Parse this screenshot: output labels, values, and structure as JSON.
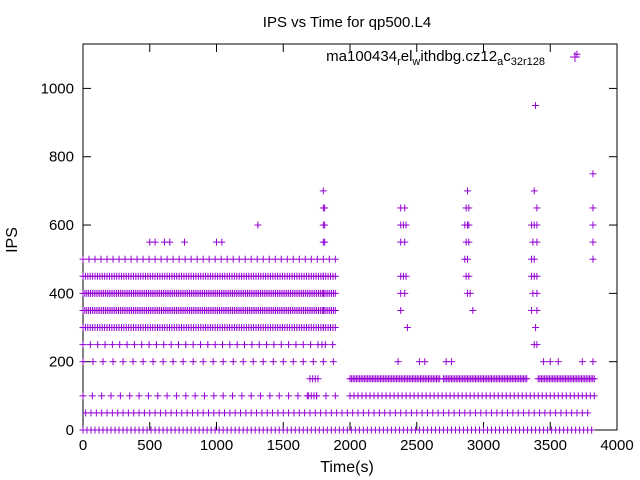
{
  "chart_data": {
    "type": "scatter",
    "title": "IPS vs Time for qp500.L4",
    "xlabel": "Time(s)",
    "ylabel": "IPS",
    "xlim": [
      0,
      4000
    ],
    "ylim": [
      0,
      1130
    ],
    "xticks": [
      0,
      500,
      1000,
      1500,
      2000,
      2500,
      3000,
      3500,
      4000
    ],
    "yticks": [
      0,
      200,
      400,
      600,
      800,
      1000
    ],
    "grid": false,
    "legend_position": "top-right",
    "series": [
      {
        "name_parts": [
          "ma100434",
          "r",
          "el",
          "w",
          "ithdbg.cz12",
          "a",
          "c",
          "32r128"
        ],
        "color": "#9400d3",
        "marker": "plus",
        "bands": [
          {
            "y": 0,
            "x_start": 0,
            "x_end": 3830,
            "step": 30
          },
          {
            "y": 50,
            "x_start": 20,
            "x_end": 3800,
            "step": 40
          },
          {
            "y": 150,
            "x_start": 2000,
            "x_end": 2680,
            "step": 12
          },
          {
            "y": 150,
            "x_start": 2700,
            "x_end": 3330,
            "step": 12
          },
          {
            "y": 150,
            "x_start": 3410,
            "x_end": 3830,
            "step": 12
          },
          {
            "y": 100,
            "x_start": 2000,
            "x_end": 3830,
            "step": 30
          },
          {
            "y": 300,
            "x_start": 0,
            "x_end": 1900,
            "step": 18
          },
          {
            "y": 350,
            "x_start": 0,
            "x_end": 1900,
            "step": 14
          },
          {
            "y": 400,
            "x_start": 0,
            "x_end": 1900,
            "step": 14
          },
          {
            "y": 450,
            "x_start": 0,
            "x_end": 1900,
            "step": 18
          },
          {
            "y": 250,
            "x_start": 0,
            "x_end": 1900,
            "step": 55
          },
          {
            "y": 200,
            "x_start": 0,
            "x_end": 1900,
            "step": 75
          },
          {
            "y": 100,
            "x_start": 0,
            "x_end": 1900,
            "step": 70
          },
          {
            "y": 500,
            "x_start": 0,
            "x_end": 1900,
            "step": 45
          }
        ],
        "points": [
          [
            1700,
            150
          ],
          [
            1720,
            150
          ],
          [
            1740,
            150
          ],
          [
            1760,
            150
          ],
          [
            1690,
            100
          ],
          [
            1710,
            100
          ],
          [
            1730,
            100
          ],
          [
            1750,
            100
          ],
          [
            1800,
            700
          ],
          [
            1800,
            650
          ],
          [
            1810,
            650
          ],
          [
            1800,
            600
          ],
          [
            1810,
            600
          ],
          [
            1800,
            550
          ],
          [
            1810,
            550
          ],
          [
            1800,
            450
          ],
          [
            1800,
            400
          ],
          [
            1800,
            350
          ],
          [
            1800,
            300
          ],
          [
            1790,
            250
          ],
          [
            2380,
            650
          ],
          [
            2410,
            650
          ],
          [
            2380,
            600
          ],
          [
            2400,
            600
          ],
          [
            2420,
            600
          ],
          [
            2380,
            550
          ],
          [
            2410,
            550
          ],
          [
            2380,
            450
          ],
          [
            2400,
            450
          ],
          [
            2420,
            450
          ],
          [
            2380,
            400
          ],
          [
            2410,
            400
          ],
          [
            2380,
            350
          ],
          [
            2430,
            300
          ],
          [
            2880,
            700
          ],
          [
            2870,
            650
          ],
          [
            2890,
            650
          ],
          [
            2860,
            600
          ],
          [
            2880,
            600
          ],
          [
            2890,
            600
          ],
          [
            2870,
            550
          ],
          [
            2890,
            550
          ],
          [
            2860,
            500
          ],
          [
            2880,
            500
          ],
          [
            2870,
            450
          ],
          [
            2890,
            450
          ],
          [
            2880,
            400
          ],
          [
            2900,
            400
          ],
          [
            2920,
            350
          ],
          [
            3380,
            700
          ],
          [
            3400,
            650
          ],
          [
            3360,
            600
          ],
          [
            3380,
            600
          ],
          [
            3400,
            600
          ],
          [
            3370,
            550
          ],
          [
            3400,
            550
          ],
          [
            3360,
            500
          ],
          [
            3380,
            500
          ],
          [
            3360,
            450
          ],
          [
            3380,
            450
          ],
          [
            3400,
            450
          ],
          [
            3370,
            400
          ],
          [
            3400,
            400
          ],
          [
            3360,
            350
          ],
          [
            3400,
            350
          ],
          [
            3390,
            300
          ],
          [
            3380,
            250
          ],
          [
            3400,
            250
          ],
          [
            3820,
            750
          ],
          [
            3820,
            650
          ],
          [
            3820,
            600
          ],
          [
            3820,
            550
          ],
          [
            3820,
            500
          ],
          [
            3390,
            950
          ],
          [
            3700,
            1100
          ],
          [
            500,
            550
          ],
          [
            540,
            550
          ],
          [
            610,
            550
          ],
          [
            650,
            550
          ],
          [
            760,
            550
          ],
          [
            1000,
            550
          ],
          [
            1040,
            550
          ],
          [
            1310,
            600
          ],
          [
            2360,
            200
          ],
          [
            2520,
            200
          ],
          [
            2560,
            200
          ],
          [
            2720,
            200
          ],
          [
            2760,
            200
          ],
          [
            3450,
            200
          ],
          [
            3500,
            200
          ],
          [
            3560,
            200
          ],
          [
            3740,
            200
          ],
          [
            3820,
            200
          ]
        ]
      }
    ]
  }
}
